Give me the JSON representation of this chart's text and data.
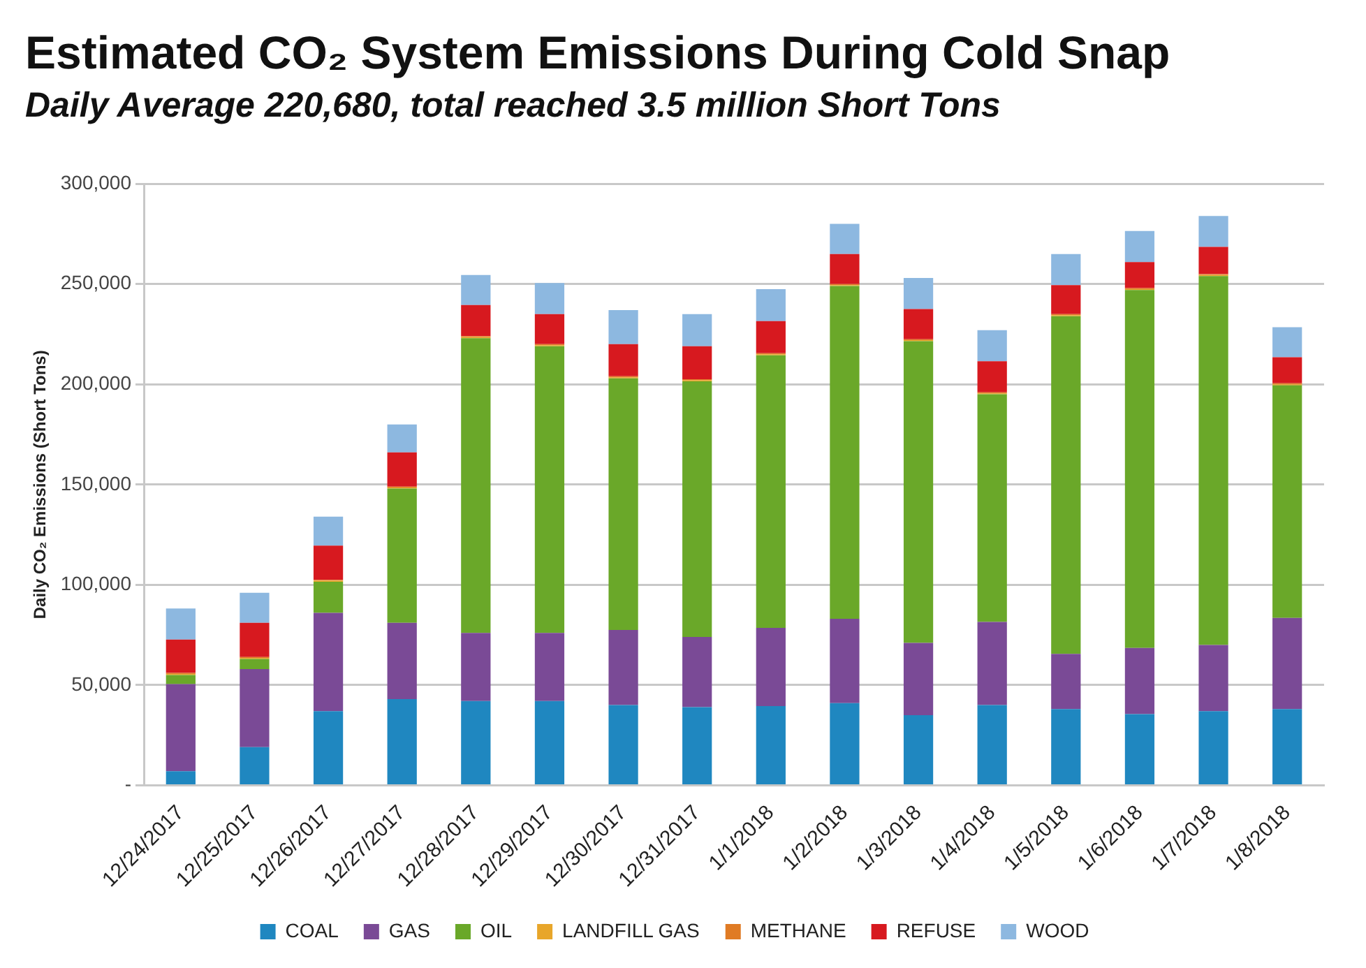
{
  "chart_data": {
    "type": "bar",
    "stacked": true,
    "title": "Estimated CO₂ System Emissions During Cold Snap",
    "subtitle": "Daily Average 220,680, total reached 3.5 million Short Tons",
    "ylabel": "Daily CO₂ Emissions (Short Tons)",
    "categories": [
      "12/24/2017",
      "12/25/2017",
      "12/26/2017",
      "12/27/2017",
      "12/28/2017",
      "12/29/2017",
      "12/30/2017",
      "12/31/2017",
      "1/1/2018",
      "1/2/2018",
      "1/3/2018",
      "1/4/2018",
      "1/5/2018",
      "1/6/2018",
      "1/7/2018",
      "1/8/2018"
    ],
    "series": [
      {
        "name": "COAL",
        "color": "#1f87c0",
        "values": [
          7000,
          19000,
          37000,
          43000,
          42000,
          42000,
          40000,
          39000,
          39500,
          41000,
          35000,
          40000,
          38000,
          35500,
          37000,
          38000
        ]
      },
      {
        "name": "GAS",
        "color": "#7a4a96",
        "values": [
          43500,
          39000,
          49000,
          38000,
          34000,
          34000,
          37500,
          35000,
          39000,
          42000,
          36000,
          41500,
          27500,
          33000,
          33000,
          45500
        ]
      },
      {
        "name": "OIL",
        "color": "#6aa829",
        "values": [
          4500,
          5000,
          15500,
          67000,
          147000,
          143000,
          125500,
          127500,
          136000,
          166000,
          150500,
          113500,
          168500,
          178500,
          184000,
          116000
        ]
      },
      {
        "name": "LANDFILL GAS",
        "color": "#e8a62a",
        "values": [
          500,
          500,
          500,
          500,
          500,
          500,
          500,
          500,
          500,
          500,
          500,
          500,
          500,
          500,
          500,
          500
        ]
      },
      {
        "name": "METHANE",
        "color": "#e07b24",
        "values": [
          500,
          500,
          500,
          500,
          500,
          500,
          500,
          500,
          500,
          500,
          500,
          500,
          500,
          500,
          500,
          500
        ]
      },
      {
        "name": "REFUSE",
        "color": "#d7191f",
        "values": [
          16700,
          17000,
          17000,
          17000,
          15500,
          15000,
          16000,
          16500,
          16000,
          15000,
          15000,
          15500,
          14500,
          13000,
          13500,
          13000
        ]
      },
      {
        "name": "WOOD",
        "color": "#8db8e0",
        "values": [
          15500,
          15000,
          14500,
          14000,
          15000,
          15500,
          17000,
          16000,
          16000,
          15000,
          15500,
          15500,
          15500,
          15500,
          15500,
          15000
        ]
      }
    ],
    "ylim": [
      0,
      300000
    ],
    "yticks": [
      {
        "value": 0,
        "label": "-"
      },
      {
        "value": 50000,
        "label": "50,000"
      },
      {
        "value": 100000,
        "label": "100,000"
      },
      {
        "value": 150000,
        "label": "150,000"
      },
      {
        "value": 200000,
        "label": "200,000"
      },
      {
        "value": 250000,
        "label": "250,000"
      },
      {
        "value": 300000,
        "label": "300,000"
      }
    ],
    "grid": "y",
    "legend": "bottom"
  }
}
